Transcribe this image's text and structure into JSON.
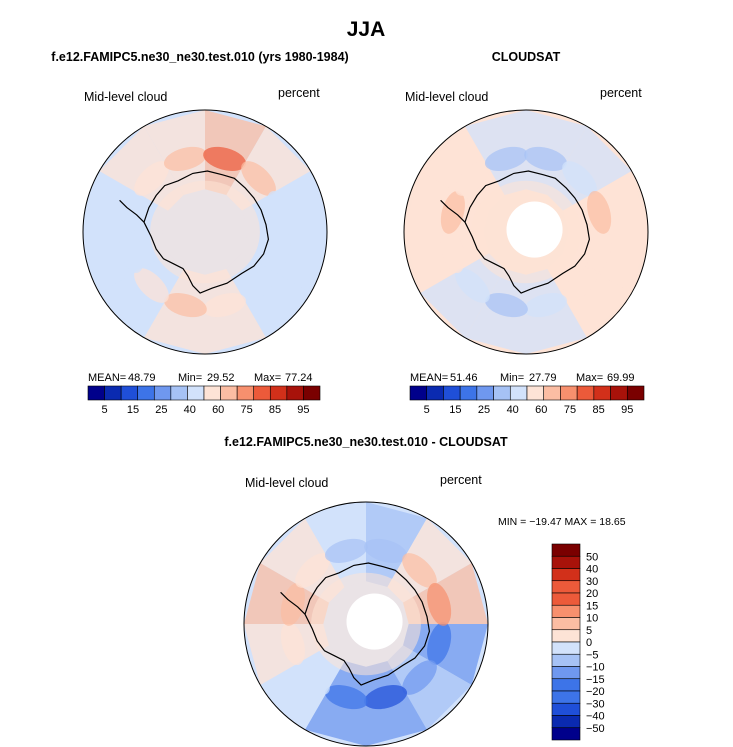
{
  "title": "JJA",
  "panels": {
    "model": {
      "title": "f.e12.FAMIPC5.ne30_ne30.test.010 (yrs 1980-1984)",
      "left_label": "Mid-level cloud",
      "right_label": "percent",
      "stats": {
        "mean_label": "MEAN=",
        "mean": "48.79",
        "min_label": "Min=",
        "min": "29.52",
        "max_label": "Max=",
        "max": "77.24"
      }
    },
    "obs": {
      "title": "CLOUDSAT",
      "left_label": "Mid-level cloud",
      "right_label": "percent",
      "stats": {
        "mean_label": "MEAN=",
        "mean": "51.46",
        "min_label": "Min=",
        "min": "27.79",
        "max_label": "Max=",
        "max": "69.99"
      }
    },
    "diff": {
      "title": "f.e12.FAMIPC5.ne30_ne30.test.010 - CLOUDSAT",
      "left_label": "Mid-level cloud",
      "right_label": "percent",
      "stats": "MIN = −19.47 MAX =  18.65"
    }
  },
  "chart_data": [
    {
      "type": "heatmap",
      "projection": "south-polar-stereographic",
      "title": "f.e12.FAMIPC5.ne30_ne30.test.010 (yrs 1980-1984)",
      "variable": "Mid-level cloud",
      "units": "percent",
      "mean": 48.79,
      "min": 29.52,
      "max": 77.24,
      "colorbar": {
        "orientation": "horizontal",
        "tick_labels": [
          "5",
          "15",
          "25",
          "40",
          "60",
          "75",
          "85",
          "95"
        ]
      },
      "pattern_levels": [
        45,
        48,
        52,
        55,
        50,
        45,
        46,
        53,
        58,
        62,
        55,
        48
      ]
    },
    {
      "type": "heatmap",
      "projection": "south-polar-stereographic",
      "title": "CLOUDSAT",
      "variable": "Mid-level cloud",
      "units": "percent",
      "mean": 51.46,
      "min": 27.79,
      "max": 69.99,
      "colorbar": {
        "orientation": "horizontal",
        "tick_labels": [
          "5",
          "15",
          "25",
          "40",
          "60",
          "75",
          "85",
          "95"
        ]
      },
      "pattern_levels": [
        52,
        55,
        48,
        45,
        50,
        55,
        58,
        52,
        45,
        42,
        50,
        56
      ]
    },
    {
      "type": "heatmap",
      "projection": "south-polar-stereographic",
      "title": "f.e12.FAMIPC5.ne30_ne30.test.010 - CLOUDSAT",
      "variable": "Mid-level cloud",
      "units": "percent",
      "min": -19.47,
      "max": 18.65,
      "colorbar": {
        "orientation": "vertical",
        "tick_labels": [
          "50",
          "40",
          "30",
          "20",
          "15",
          "10",
          "5",
          "0",
          "−5",
          "−10",
          "−15",
          "−20",
          "−30",
          "−40",
          "−50"
        ]
      },
      "pattern_levels": [
        -12,
        -8,
        -14,
        -10,
        -3,
        3,
        6,
        2,
        -4,
        -6,
        4,
        8
      ]
    }
  ],
  "colors": {
    "ramp_sequential": [
      "#00008b",
      "#0a2ab0",
      "#1f4fd8",
      "#3d74e8",
      "#6f98ef",
      "#a6c2f5",
      "#d2e2fb",
      "#fde3d6",
      "#fbbda3",
      "#f7906e",
      "#ec5a3a",
      "#d2301a",
      "#a8120a",
      "#7a0000"
    ],
    "ramp_diverging": [
      "#7a0000",
      "#a8120a",
      "#d2301a",
      "#ec5a3a",
      "#f7906e",
      "#fbbda3",
      "#fde3d6",
      "#d2e2fb",
      "#a6c2f5",
      "#6f98ef",
      "#3d74e8",
      "#1f4fd8",
      "#0a2ab0",
      "#00008b"
    ],
    "coastline": "#000000",
    "background": "#ffffff"
  }
}
